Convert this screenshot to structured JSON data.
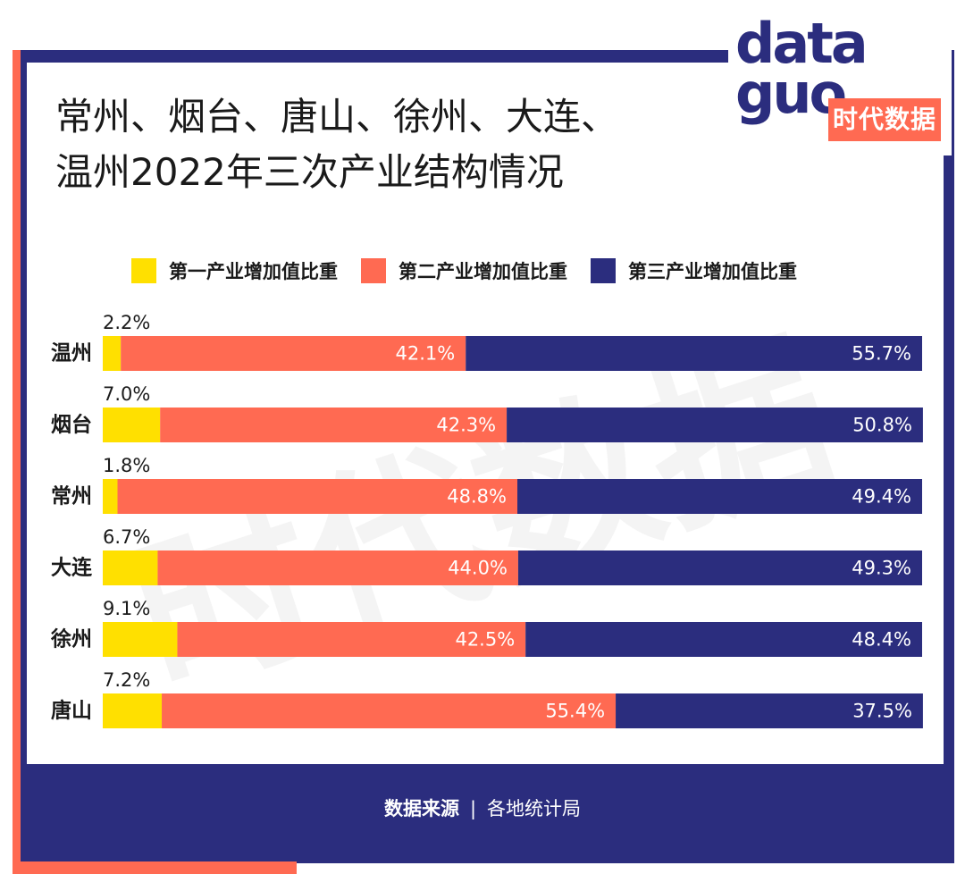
{
  "title": "常州、烟台、唐山、徐州、大连、\n温州2022年三次产业结构情况",
  "logo": {
    "line1": "data",
    "line2": "guo",
    "cn": "时代数据"
  },
  "watermark": "时代数据",
  "source": {
    "label": "数据来源",
    "separator": "|",
    "value": "各地统计局"
  },
  "colors": {
    "primary": "#ffe000",
    "secondary": "#ff6a52",
    "tertiary": "#2b2d7e",
    "frame": "#2b2d7e",
    "accent": "#ff6a52"
  },
  "chart_data": {
    "type": "bar",
    "orientation": "horizontal",
    "stacked": true,
    "categories": [
      "温州",
      "烟台",
      "常州",
      "大连",
      "徐州",
      "唐山"
    ],
    "series": [
      {
        "name": "第一产业增加值比重",
        "values": [
          2.2,
          7.0,
          1.8,
          6.7,
          9.1,
          7.2
        ],
        "labels": [
          "2.2%",
          "7.0%",
          "1.8%",
          "6.7%",
          "9.1%",
          "7.2%"
        ],
        "color": "#ffe000"
      },
      {
        "name": "第二产业增加值比重",
        "values": [
          42.1,
          42.3,
          48.8,
          44.0,
          42.5,
          55.4
        ],
        "labels": [
          "42.1%",
          "42.3%",
          "48.8%",
          "44.0%",
          "42.5%",
          "55.4%"
        ],
        "color": "#ff6a52"
      },
      {
        "name": "第三产业增加值比重",
        "values": [
          55.7,
          50.8,
          49.4,
          49.3,
          48.4,
          37.5
        ],
        "labels": [
          "55.7%",
          "50.8%",
          "49.4%",
          "49.3%",
          "48.4%",
          "37.5%"
        ],
        "color": "#2b2d7e"
      }
    ],
    "xlim": [
      0,
      100
    ],
    "legend": "top"
  }
}
